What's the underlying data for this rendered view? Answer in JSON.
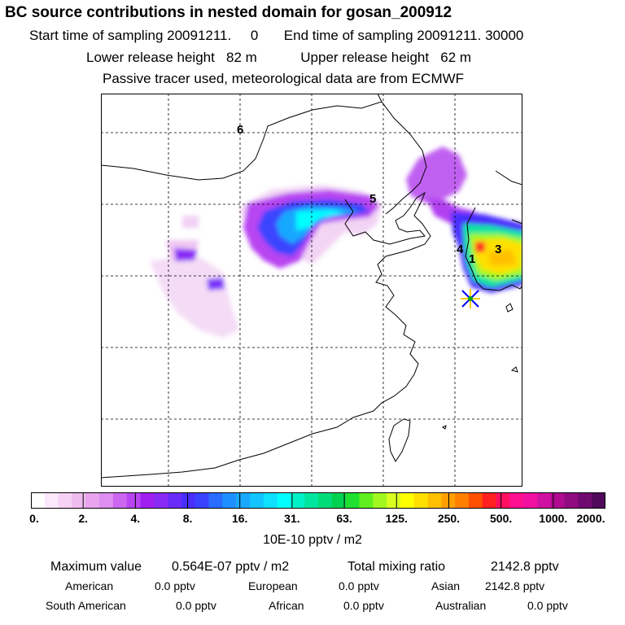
{
  "header": {
    "title": "BC  source contributions in nested domain for gosan_200912",
    "start_label": "Start time of sampling",
    "start_value": "20091211.     0",
    "end_label": "End time of sampling",
    "end_value": "20091211. 30000",
    "lower_label": "Lower release height",
    "lower_value": "82 m",
    "upper_label": "Upper release height",
    "upper_value": "62 m",
    "note": "Passive tracer used, meteorological data are from ECMWF"
  },
  "map": {
    "region_labels": [
      "6",
      "5",
      "4",
      "1",
      "3"
    ],
    "receptor_marker": "star-marker"
  },
  "colorbar": {
    "ticks": [
      "0.",
      "2.",
      "4.",
      "8.",
      "16.",
      "31.",
      "63.",
      "125.",
      "250.",
      "500.",
      "1000.",
      "2000."
    ],
    "units": "10E-10 pptv / m2",
    "colors": [
      "#ffffff",
      "#fbe8fb",
      "#f6d2f6",
      "#efbcef",
      "#e8a5ee",
      "#dd8ef0",
      "#cc66f0",
      "#b844f2",
      "#a020f0",
      "#8a2bf5",
      "#6a2cf8",
      "#4a2efc",
      "#3a44ff",
      "#2a6cff",
      "#1e8fff",
      "#18a8ff",
      "#12c4ff",
      "#0ee0ff",
      "#00ffff",
      "#00f0c8",
      "#00e6a0",
      "#00dc78",
      "#00d250",
      "#20e030",
      "#60f020",
      "#a0f820",
      "#d8ff20",
      "#ffff00",
      "#ffe000",
      "#ffc000",
      "#ffa000",
      "#ff8000",
      "#ff5000",
      "#ff2020",
      "#ff1060",
      "#ff1090",
      "#f010a0",
      "#d010a0",
      "#b00a90",
      "#900a80",
      "#700a70",
      "#500a5a"
    ]
  },
  "summary": {
    "max_label": "Maximum value",
    "max_value": "0.564E-07 pptv / m2",
    "total_label": "Total mixing ratio",
    "total_value": "2142.8 pptv",
    "american_label": "American",
    "american_value": "0.0 pptv",
    "european_label": "European",
    "european_value": "0.0 pptv",
    "asian_label": "Asian",
    "asian_value": "2142.8 pptv",
    "south_american_label": "South American",
    "south_american_value": "0.0 pptv",
    "african_label": "African",
    "african_value": "0.0 pptv",
    "australian_label": "Australian",
    "australian_value": "0.0 pptv"
  }
}
